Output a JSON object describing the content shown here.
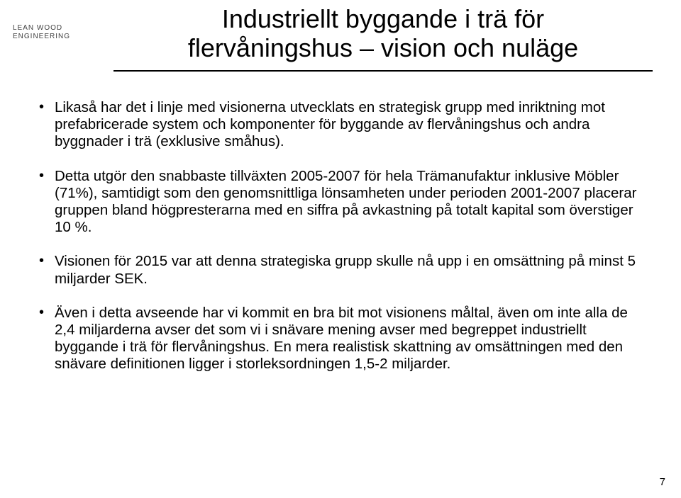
{
  "logo": {
    "line1": "LEAN WOOD",
    "line2": "ENGINEERING",
    "bar_color_dark": "#5a6634",
    "bar_color_mid": "#6f7b3f",
    "bar_color_light": "#8a9555"
  },
  "title": {
    "line1": "Industriellt byggande i trä för",
    "line2": "flervåningshus – vision och nuläge"
  },
  "bullets": [
    "Likaså har det i linje med visionerna utvecklats en strategisk grupp med inriktning mot prefabricerade system och komponenter för byggande av flervåningshus och andra byggnader i trä (exklusive småhus).",
    "Detta utgör den snabbaste tillväxten 2005-2007 för hela Trämanufaktur inklusive Möbler (71%), samtidigt som den genomsnittliga lönsamheten under perioden 2001-2007 placerar gruppen bland högpresterarna med en siffra på avkastning på totalt kapital som överstiger 10 %.",
    "Visionen för 2015 var att denna strategiska grupp skulle nå upp i en omsättning på minst 5 miljarder SEK.",
    "Även i detta avseende har vi kommit en bra bit mot visionens måltal, även om inte alla de 2,4 miljarderna avser det som vi i snävare mening avser med begreppet industriellt byggande i trä för flervåningshus. En mera realistisk skattning av omsättningen med den snävare definitionen ligger i storleksordningen 1,5-2 miljarder."
  ],
  "page_number": "7",
  "style": {
    "background_color": "#ffffff",
    "text_color": "#000000",
    "title_fontsize": 36,
    "body_fontsize": 20.5,
    "rule_color": "#000000"
  }
}
